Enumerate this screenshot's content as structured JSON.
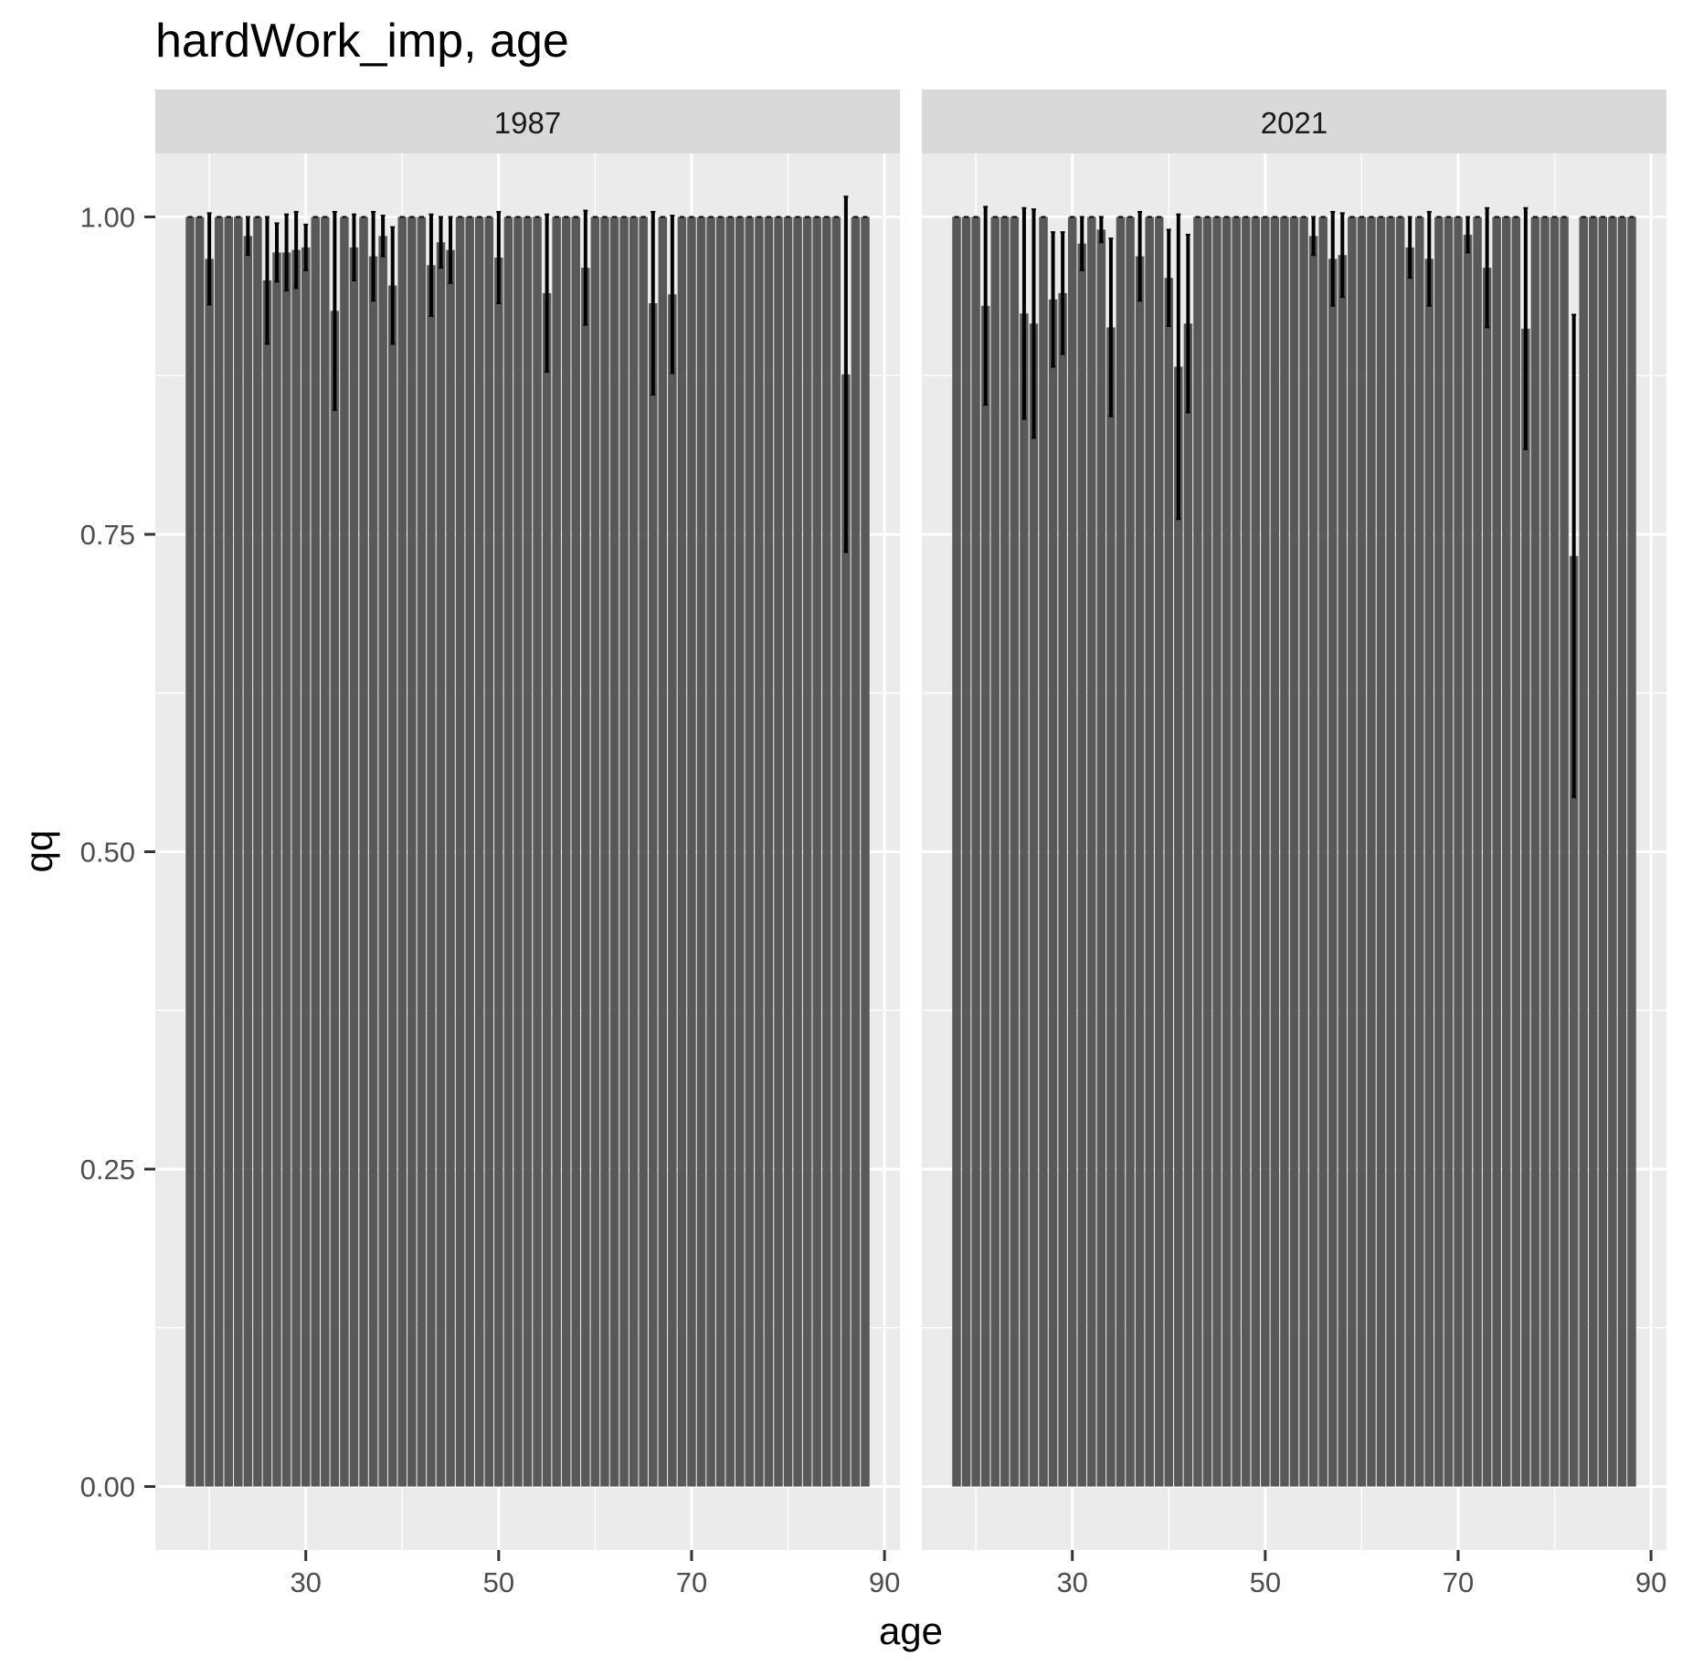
{
  "chart_data": {
    "type": "bar",
    "title": "hardWork_imp, age",
    "xlabel": "age",
    "ylabel": "qq",
    "xlim": [
      14.4,
      91.6
    ],
    "ylim": [
      -0.05,
      1.05
    ],
    "x_breaks": [
      30,
      50,
      70,
      90
    ],
    "x_tick_labels": [
      "30",
      "50",
      "70",
      "90"
    ],
    "y_breaks": [
      0,
      0.25,
      0.5,
      0.75,
      1
    ],
    "y_tick_labels": [
      "0.00",
      "0.25",
      "0.50",
      "0.75",
      "1.00"
    ],
    "grid": true,
    "facet_by": "year",
    "bar_color": "#595959",
    "errorbar_color": "#000000",
    "panel_background": "#ebebeb",
    "strip_background": "#d9d9d9",
    "panels": [
      {
        "label": "1987",
        "ages": [
          18,
          19,
          20,
          21,
          22,
          23,
          24,
          25,
          26,
          27,
          28,
          29,
          30,
          31,
          32,
          33,
          34,
          35,
          36,
          37,
          38,
          39,
          40,
          41,
          42,
          43,
          44,
          45,
          46,
          47,
          48,
          49,
          50,
          51,
          52,
          53,
          54,
          55,
          56,
          57,
          58,
          59,
          60,
          61,
          62,
          63,
          64,
          65,
          66,
          67,
          68,
          69,
          70,
          71,
          72,
          73,
          74,
          75,
          76,
          77,
          78,
          79,
          80,
          81,
          82,
          83,
          84,
          85,
          86,
          87,
          88
        ],
        "values": [
          1,
          1,
          0.967,
          1,
          1,
          1,
          0.985,
          1,
          0.95,
          0.972,
          0.972,
          0.974,
          0.976,
          1,
          1,
          0.926,
          1,
          0.976,
          1,
          0.969,
          0.985,
          0.946,
          1,
          1,
          1,
          0.962,
          0.98,
          0.974,
          1,
          1,
          1,
          1,
          0.968,
          1,
          1,
          1,
          1,
          0.94,
          1,
          1,
          1,
          0.96,
          1,
          1,
          1,
          1,
          1,
          1,
          0.932,
          1,
          0.939,
          1,
          1,
          1,
          1,
          1,
          1,
          1,
          1,
          1,
          1,
          1,
          1,
          1,
          1,
          1,
          1,
          1,
          0.876,
          1,
          1
        ],
        "errors": [
          0,
          0,
          0.036,
          0,
          0,
          0,
          0.015,
          0,
          0.05,
          0.023,
          0.03,
          0.03,
          0.018,
          0,
          0,
          0.078,
          0,
          0.026,
          0,
          0.035,
          0.016,
          0.046,
          0,
          0,
          0,
          0.04,
          0.02,
          0.026,
          0,
          0,
          0,
          0,
          0.036,
          0,
          0,
          0,
          0,
          0.062,
          0,
          0,
          0,
          0.045,
          0,
          0,
          0,
          0,
          0,
          0,
          0.072,
          0,
          0.062,
          0,
          0,
          0,
          0,
          0,
          0,
          0,
          0,
          0,
          0,
          0,
          0,
          0,
          0,
          0,
          0,
          0,
          0.14,
          0,
          0
        ]
      },
      {
        "label": "2021",
        "ages": [
          18,
          19,
          20,
          21,
          22,
          23,
          24,
          25,
          26,
          27,
          28,
          29,
          30,
          31,
          32,
          33,
          34,
          35,
          36,
          37,
          38,
          39,
          40,
          41,
          42,
          43,
          44,
          45,
          46,
          47,
          48,
          49,
          50,
          51,
          52,
          53,
          54,
          55,
          56,
          57,
          58,
          59,
          60,
          61,
          62,
          63,
          64,
          65,
          66,
          67,
          68,
          69,
          70,
          71,
          72,
          73,
          74,
          75,
          76,
          77,
          78,
          79,
          80,
          81,
          82,
          83,
          84,
          85,
          86,
          87,
          88
        ],
        "values": [
          1,
          1,
          1,
          0.93,
          1,
          1,
          1,
          0.924,
          0.916,
          1,
          0.935,
          0.94,
          1,
          0.979,
          1,
          0.99,
          0.913,
          1,
          1,
          0.969,
          1,
          1,
          0.952,
          0.882,
          0.916,
          1,
          1,
          1,
          1,
          1,
          1,
          1,
          1,
          1,
          1,
          1,
          1,
          0.985,
          1,
          0.967,
          0.97,
          1,
          1,
          1,
          1,
          1,
          1,
          0.976,
          1,
          0.967,
          1,
          1,
          1,
          0.986,
          1,
          0.96,
          1,
          1,
          1,
          0.912,
          1,
          1,
          1,
          1,
          0.733,
          1,
          1,
          1,
          1,
          1,
          1
        ],
        "errors": [
          0,
          0,
          0,
          0.078,
          0,
          0,
          0,
          0.083,
          0.09,
          0,
          0.053,
          0.048,
          0,
          0.021,
          0,
          0.01,
          0.07,
          0,
          0,
          0.035,
          0,
          0,
          0.038,
          0.12,
          0.07,
          0,
          0,
          0,
          0,
          0,
          0,
          0,
          0,
          0,
          0,
          0,
          0,
          0.015,
          0,
          0.037,
          0.033,
          0,
          0,
          0,
          0,
          0,
          0,
          0.024,
          0,
          0.037,
          0,
          0,
          0,
          0.014,
          0,
          0.047,
          0,
          0,
          0,
          0.095,
          0,
          0,
          0,
          0,
          0.19,
          0,
          0,
          0,
          0,
          0,
          0
        ]
      }
    ]
  }
}
